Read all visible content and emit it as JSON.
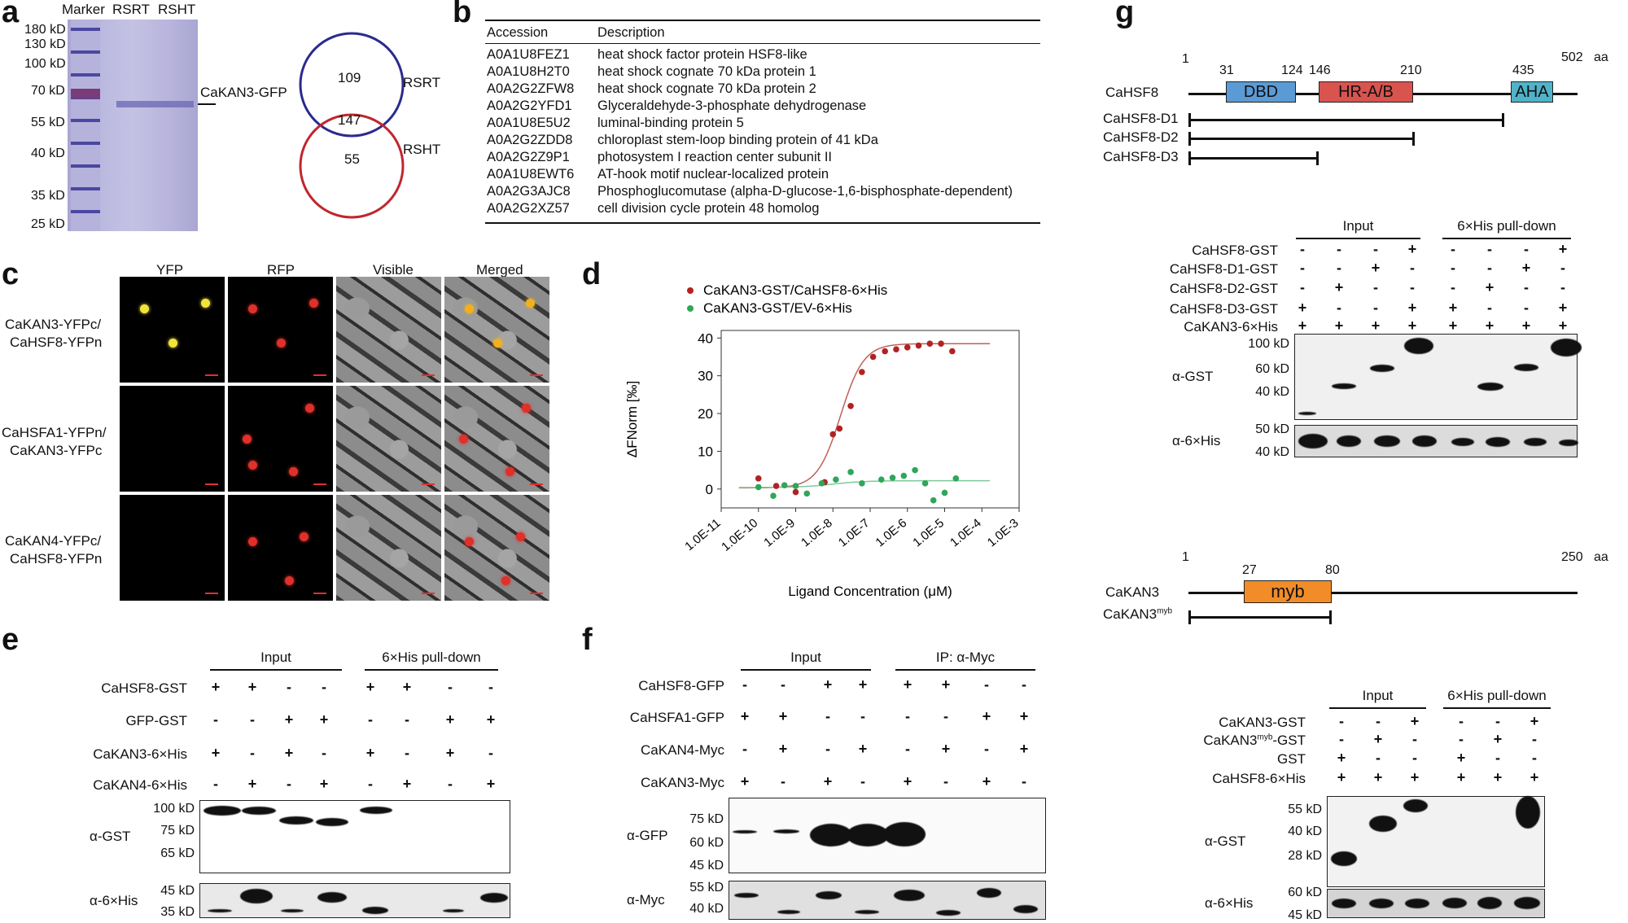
{
  "panels": {
    "a": "a",
    "b": "b",
    "c": "c",
    "d": "d",
    "e": "e",
    "f": "f",
    "g": "g"
  },
  "panel_a": {
    "lane_labels": [
      "Marker",
      "RSRT",
      "RSHT"
    ],
    "markers": [
      "180 kD",
      "130 kD",
      "100 kD",
      "70 kD",
      "55 kD",
      "40 kD",
      "35 kD",
      "25 kD"
    ],
    "band_label": "CaKAN3-GFP",
    "venn": {
      "set1": "RSRT",
      "set2": "RSHT",
      "only1": "109",
      "both": "147",
      "only2": "55",
      "color1": "#2b2a8f",
      "color2": "#c0262d"
    }
  },
  "panel_b": {
    "headers": [
      "Accession",
      "Description"
    ],
    "rows": [
      [
        "A0A1U8FEZ1",
        "heat shock factor protein HSF8-like"
      ],
      [
        "A0A1U8H2T0",
        "heat shock cognate 70 kDa protein 1"
      ],
      [
        "A0A2G2ZFW8",
        "heat shock cognate 70 kDa protein 2"
      ],
      [
        "A0A2G2YFD1",
        "Glyceraldehyde-3-phosphate dehydrogenase"
      ],
      [
        "A0A1U8E5U2",
        "luminal-binding protein 5"
      ],
      [
        "A0A2G2ZDD8",
        "chloroplast stem-loop binding protein of 41 kDa"
      ],
      [
        "A0A2G2Z9P1",
        "photosystem I reaction center subunit II"
      ],
      [
        "A0A1U8EWT6",
        "AT-hook motif nuclear-localized protein"
      ],
      [
        "A0A2G3AJC8",
        "Phosphoglucomutase (alpha-D-glucose-1,6-bisphosphate-dependent)"
      ],
      [
        "A0A2G2XZ57",
        "cell division cycle protein 48 homolog"
      ]
    ]
  },
  "panel_c": {
    "columns": [
      "YFP",
      "RFP",
      "Visible",
      "Merged"
    ],
    "rows": [
      {
        "line1": "CaKAN3-YFPc/",
        "line2": "CaHSF8-YFPn"
      },
      {
        "line1": "CaHSFA1-YFPn/",
        "line2": "CaKAN3-YFPc"
      },
      {
        "line1": "CaKAN4-YFPc/",
        "line2": "CaHSF8-YFPn"
      }
    ]
  },
  "chart_data": {
    "type": "scatter",
    "title": "",
    "xlabel": "Ligand Concentration (μM)",
    "ylabel": "ΔFNorm [‰]",
    "xscale": "log",
    "xlim": [
      1e-11,
      0.001
    ],
    "ylim": [
      -5,
      42
    ],
    "x_ticks": [
      "1.0E-11",
      "1.0E-10",
      "1.0E-9",
      "1.0E-8",
      "1.0E-7",
      "1.0E-6",
      "1.0E-5",
      "1.0E-4",
      "1.0E-3"
    ],
    "y_ticks": [
      "0",
      "10",
      "20",
      "30",
      "40"
    ],
    "legend_position": "top-left",
    "series": [
      {
        "name": "CaKAN3-GST/CaHSF8-6×His",
        "color": "#b22222",
        "fit_color": "#c0605a",
        "x": [
          1e-10,
          3e-10,
          1e-09,
          6e-09,
          1e-08,
          1.5e-08,
          3e-08,
          6e-08,
          1.2e-07,
          2.5e-07,
          5e-07,
          1e-06,
          2e-06,
          4e-06,
          8e-06,
          1.6e-05
        ],
        "y": [
          2.8,
          0.8,
          -0.8,
          1.8,
          14.5,
          16.0,
          22.0,
          31.0,
          35.0,
          36.5,
          37.0,
          37.5,
          38.0,
          38.5,
          38.5,
          36.5
        ]
      },
      {
        "name": "CaKAN3-GST/EV-6×His",
        "color": "#2fa65a",
        "fit_color": "#7fc99a",
        "x": [
          1e-10,
          2.5e-10,
          5e-10,
          1e-09,
          2e-09,
          5e-09,
          1.2e-08,
          3e-08,
          6e-08,
          2e-07,
          4e-07,
          8e-07,
          1.6e-06,
          3e-06,
          5e-06,
          1e-05,
          2e-05
        ],
        "y": [
          0.5,
          -1.8,
          1.0,
          0.8,
          -1.2,
          1.5,
          2.5,
          4.5,
          1.5,
          2.5,
          3.0,
          3.5,
          5.0,
          1.5,
          -3.0,
          -1.0,
          2.8
        ]
      }
    ]
  },
  "panel_e": {
    "groups": [
      "Input",
      "6×His pull-down"
    ],
    "rows": [
      {
        "label": "CaHSF8-GST",
        "signs": [
          "+",
          "+",
          "-",
          "-",
          "+",
          "+",
          "-",
          "-"
        ]
      },
      {
        "label": "GFP-GST",
        "signs": [
          "-",
          "-",
          "+",
          "+",
          "-",
          "-",
          "+",
          "+"
        ]
      },
      {
        "label": "CaKAN3-6×His",
        "signs": [
          "+",
          "-",
          "+",
          "-",
          "+",
          "-",
          "+",
          "-"
        ]
      },
      {
        "label": "CaKAN4-6×His",
        "signs": [
          "-",
          "+",
          "-",
          "+",
          "-",
          "+",
          "-",
          "+"
        ]
      }
    ],
    "blot1": {
      "label": "α-GST",
      "markers": [
        "100 kD",
        "75 kD",
        "65 kD"
      ]
    },
    "blot2": {
      "label": "α-6×His",
      "markers": [
        "45 kD",
        "35 kD"
      ]
    }
  },
  "panel_f": {
    "groups": [
      "Input",
      "IP: α-Myc"
    ],
    "rows": [
      {
        "label": "CaHSF8-GFP",
        "signs": [
          "-",
          "-",
          "+",
          "+",
          "+",
          "+",
          "-",
          "-"
        ]
      },
      {
        "label": "CaHSFA1-GFP",
        "signs": [
          "+",
          "+",
          "-",
          "-",
          "-",
          "-",
          "+",
          "+"
        ]
      },
      {
        "label": "CaKAN4-Myc",
        "signs": [
          "-",
          "+",
          "-",
          "+",
          "-",
          "+",
          "-",
          "+"
        ]
      },
      {
        "label": "CaKAN3-Myc",
        "signs": [
          "+",
          "-",
          "+",
          "-",
          "+",
          "-",
          "+",
          "-"
        ]
      }
    ],
    "blot1": {
      "label": "α-GFP",
      "markers": [
        "75 kD",
        "60 kD",
        "45 kD"
      ]
    },
    "blot2": {
      "label": "α-Myc",
      "markers": [
        "55 kD",
        "40 kD"
      ]
    }
  },
  "panel_g": {
    "hsf8": {
      "name": "CaHSF8",
      "start": "1",
      "end": "502",
      "unit": "aa",
      "positions": [
        "31",
        "124",
        "146",
        "210",
        "435"
      ],
      "domains": [
        {
          "label": "DBD",
          "color": "#5b9bd5"
        },
        {
          "label": "HR-A/B",
          "color": "#d9534f"
        },
        {
          "label": "AHA",
          "color": "#4fb3c9"
        }
      ],
      "deletions": [
        "CaHSF8-D1",
        "CaHSF8-D2",
        "CaHSF8-D3"
      ]
    },
    "blot_top": {
      "groups": [
        "Input",
        "6×His pull-down"
      ],
      "rows": [
        {
          "label": "CaHSF8-GST",
          "signs": [
            "-",
            "-",
            "-",
            "+",
            "-",
            "-",
            "-",
            "+"
          ]
        },
        {
          "label": "CaHSF8-D1-GST",
          "signs": [
            "-",
            "-",
            "+",
            "-",
            "-",
            "-",
            "+",
            "-"
          ]
        },
        {
          "label": "CaHSF8-D2-GST",
          "signs": [
            "-",
            "+",
            "-",
            "-",
            "-",
            "+",
            "-",
            "-"
          ]
        },
        {
          "label": "CaHSF8-D3-GST",
          "signs": [
            "+",
            "-",
            "-",
            "+",
            "+",
            "-",
            "-",
            "+"
          ]
        },
        {
          "label": "CaKAN3-6×His",
          "signs": [
            "+",
            "+",
            "+",
            "+",
            "+",
            "+",
            "+",
            "+"
          ]
        }
      ],
      "blot1": {
        "label": "α-GST",
        "markers": [
          "100 kD",
          "60 kD",
          "40 kD"
        ]
      },
      "blot2": {
        "label": "α-6×His",
        "markers": [
          "50 kD",
          "40 kD"
        ]
      }
    },
    "kan3": {
      "name": "CaKAN3",
      "start": "1",
      "end": "250",
      "unit": "aa",
      "positions": [
        "27",
        "80"
      ],
      "domain": {
        "label": "myb",
        "color": "#f28c28"
      },
      "deletion": "CaKAN3",
      "deletion_sup": "myb"
    },
    "blot_bottom": {
      "groups": [
        "Input",
        "6×His pull-down"
      ],
      "rows": [
        {
          "label": "CaKAN3-GST",
          "signs": [
            "-",
            "-",
            "+",
            "-",
            "-",
            "+"
          ]
        },
        {
          "label": "CaKAN3",
          "label_sup": "myb",
          "label_suffix": "-GST",
          "signs": [
            "-",
            "+",
            "-",
            "-",
            "+",
            "-"
          ]
        },
        {
          "label": "GST",
          "signs": [
            "+",
            "-",
            "-",
            "+",
            "-",
            "-"
          ]
        },
        {
          "label": "CaHSF8-6×His",
          "signs": [
            "+",
            "+",
            "+",
            "+",
            "+",
            "+"
          ]
        }
      ],
      "blot1": {
        "label": "α-GST",
        "markers": [
          "55 kD",
          "40 kD",
          "28 kD"
        ]
      },
      "blot2": {
        "label": "α-6×His",
        "markers": [
          "60 kD",
          "45 kD"
        ]
      }
    }
  }
}
